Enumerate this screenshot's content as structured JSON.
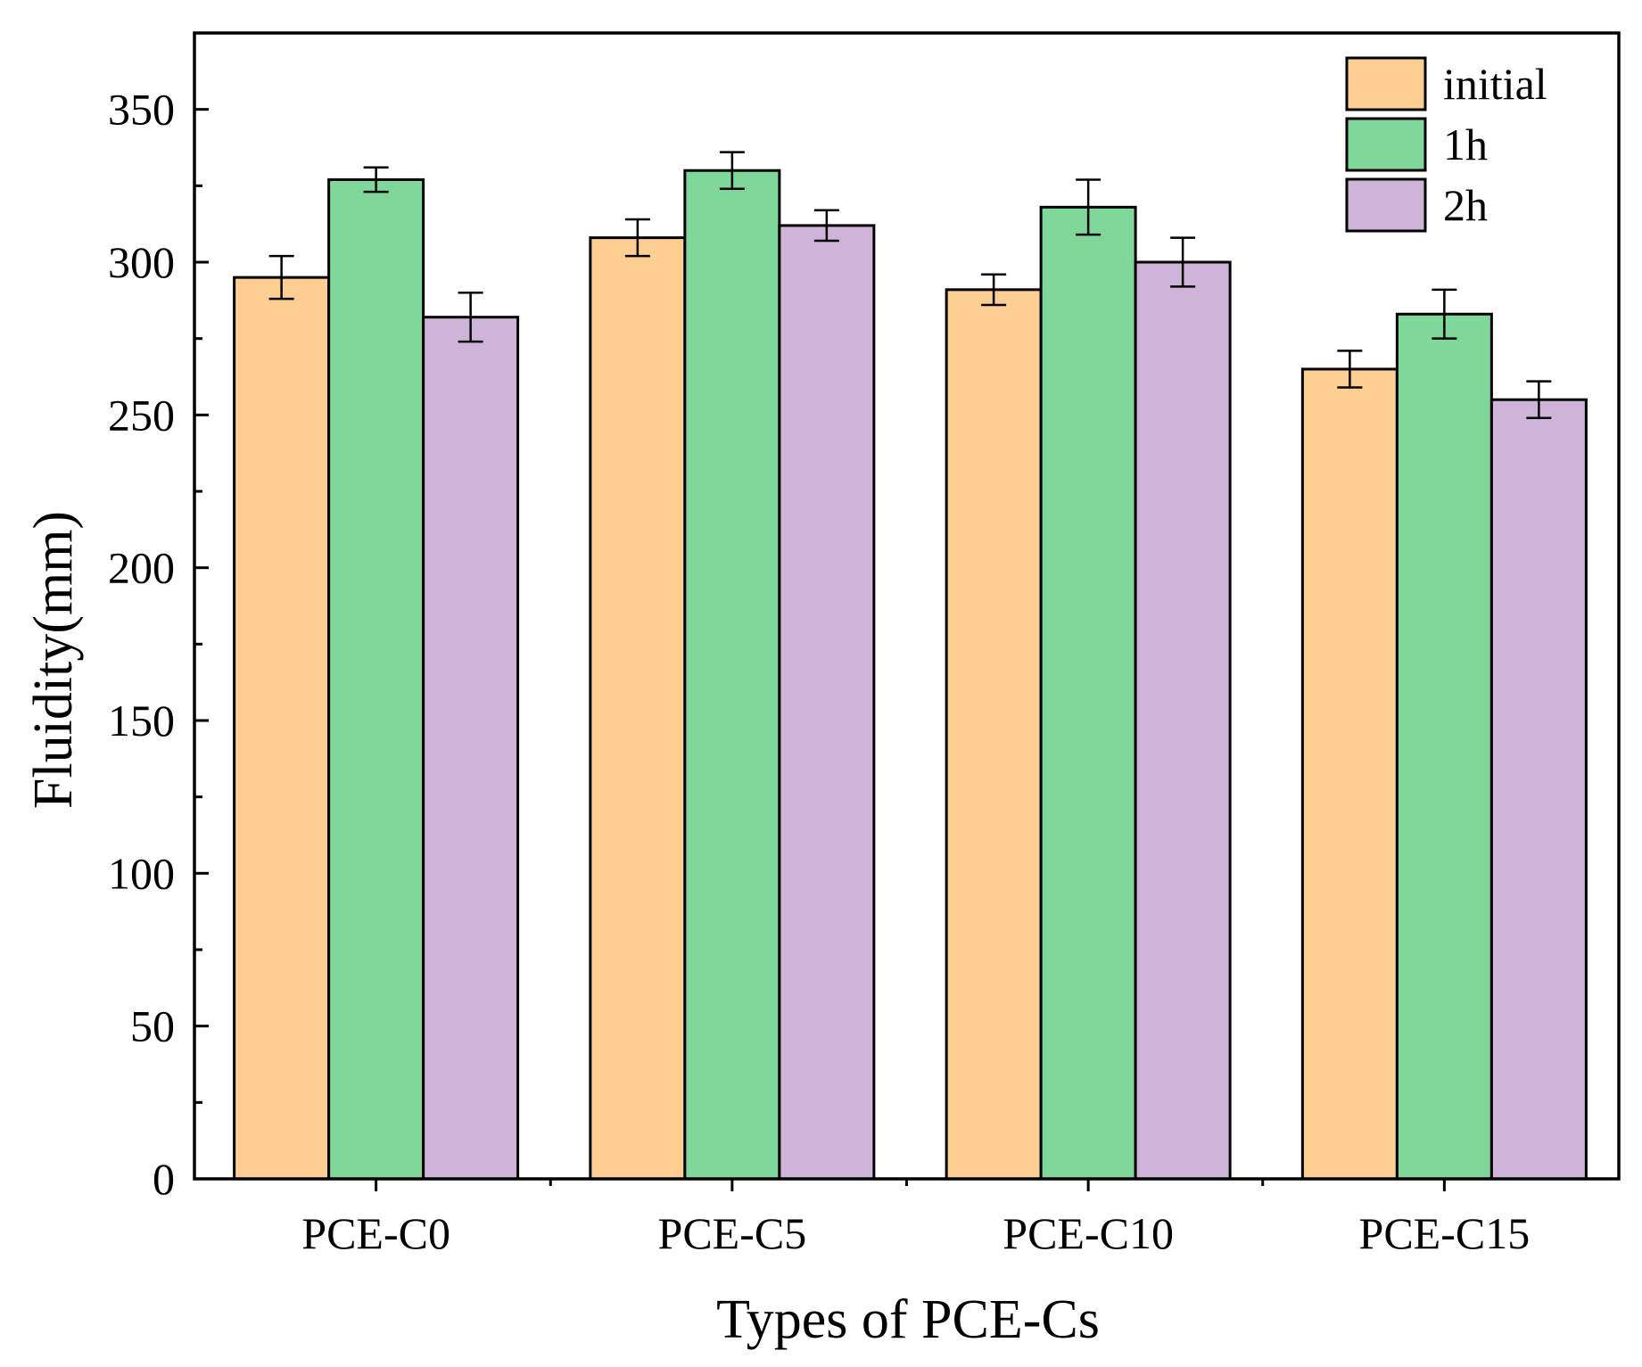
{
  "chart_data": {
    "type": "bar",
    "title": "",
    "xlabel": "Types of PCE-Cs",
    "ylabel": "Fluidity(mm)",
    "ylim": [
      0,
      375
    ],
    "yticks": [
      0,
      50,
      100,
      150,
      200,
      250,
      300,
      350
    ],
    "ytick_labels": [
      "0",
      "50",
      "100",
      "150",
      "200",
      "250",
      "300",
      "350"
    ],
    "categories": [
      "PCE-C0",
      "PCE-C5",
      "PCE-C10",
      "PCE-C15"
    ],
    "series": [
      {
        "name": "initial",
        "color": "#FDCE91",
        "values": [
          295,
          308,
          291,
          265
        ],
        "errors": [
          7,
          6,
          5,
          6
        ]
      },
      {
        "name": "1h",
        "color": "#7FD899",
        "values": [
          327,
          330,
          318,
          283
        ],
        "errors": [
          4,
          6,
          9,
          8
        ]
      },
      {
        "name": "2h",
        "color": "#CEB4D9",
        "values": [
          282,
          312,
          300,
          255
        ],
        "errors": [
          8,
          5,
          8,
          6
        ]
      }
    ],
    "legend_position": "top-right",
    "grid": false
  }
}
